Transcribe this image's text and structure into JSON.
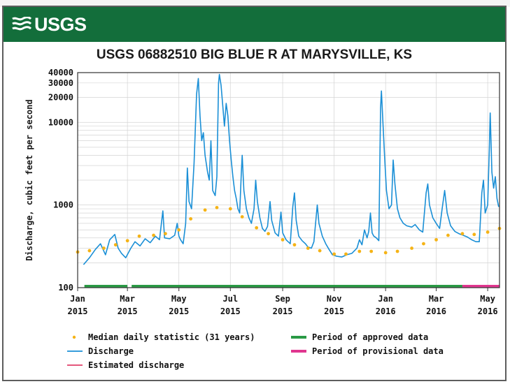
{
  "header": {
    "logo_text": "USGS",
    "brand_color": "#136e3b"
  },
  "chart_data": {
    "type": "line",
    "title": "USGS 06882510 BIG BLUE R AT MARYSVILLE, KS",
    "ylabel": "Discharge, cubic feet per second",
    "xlabel": "",
    "yscale": "log",
    "ylim": [
      100,
      40000
    ],
    "xlim": [
      "2015-01-01",
      "2016-05-15"
    ],
    "grid": true,
    "y_ticks": [
      {
        "value": 100,
        "label": "100"
      },
      {
        "value": 1000,
        "label": "1000"
      },
      {
        "value": 10000,
        "label": "10000"
      },
      {
        "value": 20000,
        "label": "20000"
      },
      {
        "value": 30000,
        "label": "30000"
      },
      {
        "value": 40000,
        "label": "40000"
      }
    ],
    "x_ticks": [
      {
        "date": "2015-01-01",
        "month": "Jan",
        "year": "2015"
      },
      {
        "date": "2015-03-01",
        "month": "Mar",
        "year": "2015"
      },
      {
        "date": "2015-05-01",
        "month": "May",
        "year": "2015"
      },
      {
        "date": "2015-07-01",
        "month": "Jul",
        "year": "2015"
      },
      {
        "date": "2015-09-01",
        "month": "Sep",
        "year": "2015"
      },
      {
        "date": "2015-11-01",
        "month": "Nov",
        "year": "2015"
      },
      {
        "date": "2016-01-01",
        "month": "Jan",
        "year": "2016"
      },
      {
        "date": "2016-03-01",
        "month": "Mar",
        "year": "2016"
      },
      {
        "date": "2016-05-01",
        "month": "May",
        "year": "2016"
      }
    ],
    "series": [
      {
        "name": "Discharge",
        "color": "#1a8fd6",
        "style": "line",
        "points": [
          [
            "2015-01-08",
            190
          ],
          [
            "2015-01-15",
            230
          ],
          [
            "2015-01-22",
            290
          ],
          [
            "2015-01-28",
            340
          ],
          [
            "2015-02-03",
            250
          ],
          [
            "2015-02-08",
            380
          ],
          [
            "2015-02-14",
            440
          ],
          [
            "2015-02-18",
            300
          ],
          [
            "2015-02-22",
            260
          ],
          [
            "2015-02-27",
            230
          ],
          [
            "2015-03-05",
            300
          ],
          [
            "2015-03-10",
            360
          ],
          [
            "2015-03-16",
            320
          ],
          [
            "2015-03-22",
            390
          ],
          [
            "2015-03-28",
            350
          ],
          [
            "2015-04-03",
            420
          ],
          [
            "2015-04-08",
            380
          ],
          [
            "2015-04-12",
            850
          ],
          [
            "2015-04-14",
            400
          ],
          [
            "2015-04-20",
            390
          ],
          [
            "2015-04-26",
            430
          ],
          [
            "2015-04-29",
            600
          ],
          [
            "2015-05-01",
            420
          ],
          [
            "2015-05-03",
            380
          ],
          [
            "2015-05-06",
            340
          ],
          [
            "2015-05-09",
            600
          ],
          [
            "2015-05-11",
            2800
          ],
          [
            "2015-05-13",
            1100
          ],
          [
            "2015-05-16",
            900
          ],
          [
            "2015-05-19",
            3200
          ],
          [
            "2015-05-22",
            22000
          ],
          [
            "2015-05-24",
            34000
          ],
          [
            "2015-05-26",
            12000
          ],
          [
            "2015-05-28",
            6000
          ],
          [
            "2015-05-30",
            7500
          ],
          [
            "2015-06-01",
            4000
          ],
          [
            "2015-06-04",
            2500
          ],
          [
            "2015-06-06",
            2000
          ],
          [
            "2015-06-08",
            6000
          ],
          [
            "2015-06-10",
            1500
          ],
          [
            "2015-06-13",
            1300
          ],
          [
            "2015-06-15",
            2200
          ],
          [
            "2015-06-17",
            30000
          ],
          [
            "2015-06-18",
            38000
          ],
          [
            "2015-06-20",
            28000
          ],
          [
            "2015-06-22",
            16000
          ],
          [
            "2015-06-24",
            9000
          ],
          [
            "2015-06-26",
            17000
          ],
          [
            "2015-06-28",
            12000
          ],
          [
            "2015-06-30",
            6000
          ],
          [
            "2015-07-02",
            3500
          ],
          [
            "2015-07-04",
            2200
          ],
          [
            "2015-07-06",
            1500
          ],
          [
            "2015-07-08",
            1200
          ],
          [
            "2015-07-10",
            900
          ],
          [
            "2015-07-12",
            800
          ],
          [
            "2015-07-14",
            2500
          ],
          [
            "2015-07-15",
            4000
          ],
          [
            "2015-07-17",
            1500
          ],
          [
            "2015-07-20",
            900
          ],
          [
            "2015-07-23",
            700
          ],
          [
            "2015-07-26",
            600
          ],
          [
            "2015-07-29",
            900
          ],
          [
            "2015-07-31",
            2000
          ],
          [
            "2015-08-02",
            1100
          ],
          [
            "2015-08-05",
            700
          ],
          [
            "2015-08-08",
            520
          ],
          [
            "2015-08-11",
            480
          ],
          [
            "2015-08-14",
            550
          ],
          [
            "2015-08-17",
            1100
          ],
          [
            "2015-08-19",
            650
          ],
          [
            "2015-08-23",
            460
          ],
          [
            "2015-08-27",
            420
          ],
          [
            "2015-08-30",
            820
          ],
          [
            "2015-09-01",
            460
          ],
          [
            "2015-09-05",
            380
          ],
          [
            "2015-09-10",
            340
          ],
          [
            "2015-09-13",
            950
          ],
          [
            "2015-09-15",
            1400
          ],
          [
            "2015-09-17",
            650
          ],
          [
            "2015-09-20",
            420
          ],
          [
            "2015-09-24",
            370
          ],
          [
            "2015-09-28",
            340
          ],
          [
            "2015-10-01",
            310
          ],
          [
            "2015-10-05",
            300
          ],
          [
            "2015-10-08",
            360
          ],
          [
            "2015-10-12",
            1000
          ],
          [
            "2015-10-14",
            600
          ],
          [
            "2015-10-18",
            420
          ],
          [
            "2015-10-22",
            340
          ],
          [
            "2015-10-26",
            290
          ],
          [
            "2015-10-30",
            250
          ],
          [
            "2015-11-04",
            240
          ],
          [
            "2015-11-10",
            235
          ],
          [
            "2015-11-16",
            250
          ],
          [
            "2015-11-22",
            260
          ],
          [
            "2015-11-28",
            300
          ],
          [
            "2015-12-01",
            380
          ],
          [
            "2015-12-04",
            330
          ],
          [
            "2015-12-07",
            500
          ],
          [
            "2015-12-10",
            400
          ],
          [
            "2015-12-12",
            480
          ],
          [
            "2015-12-14",
            800
          ],
          [
            "2015-12-16",
            460
          ],
          [
            "2015-12-18",
            420
          ],
          [
            "2015-12-21",
            400
          ],
          [
            "2015-12-24",
            370
          ],
          [
            "2015-12-26",
            15000
          ],
          [
            "2015-12-27",
            24000
          ],
          [
            "2015-12-29",
            9000
          ],
          [
            "2015-12-31",
            3500
          ],
          [
            "2016-01-02",
            1500
          ],
          [
            "2016-01-05",
            900
          ],
          [
            "2016-01-08",
            1000
          ],
          [
            "2016-01-10",
            3500
          ],
          [
            "2016-01-12",
            1800
          ],
          [
            "2016-01-15",
            900
          ],
          [
            "2016-01-18",
            700
          ],
          [
            "2016-01-22",
            600
          ],
          [
            "2016-01-26",
            560
          ],
          [
            "2016-02-01",
            540
          ],
          [
            "2016-02-05",
            580
          ],
          [
            "2016-02-10",
            500
          ],
          [
            "2016-02-14",
            470
          ],
          [
            "2016-02-18",
            1400
          ],
          [
            "2016-02-20",
            1800
          ],
          [
            "2016-02-22",
            1000
          ],
          [
            "2016-02-26",
            700
          ],
          [
            "2016-03-01",
            600
          ],
          [
            "2016-03-05",
            520
          ],
          [
            "2016-03-08",
            900
          ],
          [
            "2016-03-11",
            1500
          ],
          [
            "2016-03-14",
            800
          ],
          [
            "2016-03-18",
            560
          ],
          [
            "2016-03-23",
            480
          ],
          [
            "2016-03-28",
            450
          ],
          [
            "2016-04-02",
            430
          ],
          [
            "2016-04-07",
            410
          ],
          [
            "2016-04-12",
            380
          ],
          [
            "2016-04-17",
            360
          ],
          [
            "2016-04-21",
            360
          ],
          [
            "2016-04-24",
            1400
          ],
          [
            "2016-04-26",
            2000
          ],
          [
            "2016-04-28",
            800
          ],
          [
            "2016-05-01",
            1000
          ],
          [
            "2016-05-03",
            5000
          ],
          [
            "2016-05-04",
            13000
          ],
          [
            "2016-05-06",
            2500
          ],
          [
            "2016-05-08",
            1600
          ],
          [
            "2016-05-10",
            2200
          ],
          [
            "2016-05-12",
            1200
          ],
          [
            "2016-05-14",
            950
          ]
        ]
      },
      {
        "name": "Median daily statistic (31 years)",
        "color": "#f5b316",
        "style": "dots",
        "points": [
          [
            "2015-01-01",
            270
          ],
          [
            "2015-01-15",
            280
          ],
          [
            "2015-02-01",
            300
          ],
          [
            "2015-02-15",
            330
          ],
          [
            "2015-03-01",
            370
          ],
          [
            "2015-03-15",
            420
          ],
          [
            "2015-04-01",
            430
          ],
          [
            "2015-04-15",
            450
          ],
          [
            "2015-05-01",
            500
          ],
          [
            "2015-05-15",
            680
          ],
          [
            "2015-06-01",
            870
          ],
          [
            "2015-06-15",
            930
          ],
          [
            "2015-07-01",
            900
          ],
          [
            "2015-07-15",
            720
          ],
          [
            "2015-08-01",
            530
          ],
          [
            "2015-08-15",
            450
          ],
          [
            "2015-09-01",
            380
          ],
          [
            "2015-09-15",
            330
          ],
          [
            "2015-10-01",
            300
          ],
          [
            "2015-10-15",
            280
          ],
          [
            "2015-11-01",
            255
          ],
          [
            "2015-11-15",
            255
          ],
          [
            "2015-12-01",
            275
          ],
          [
            "2015-12-15",
            275
          ],
          [
            "2016-01-01",
            265
          ],
          [
            "2016-01-15",
            275
          ],
          [
            "2016-02-01",
            300
          ],
          [
            "2016-02-15",
            340
          ],
          [
            "2016-03-01",
            380
          ],
          [
            "2016-03-15",
            430
          ],
          [
            "2016-04-01",
            450
          ],
          [
            "2016-04-15",
            440
          ],
          [
            "2016-05-01",
            470
          ],
          [
            "2016-05-15",
            520
          ]
        ]
      }
    ],
    "approval_periods": [
      {
        "name": "Period of approved data",
        "start": "2015-01-09",
        "end": "2015-03-01",
        "color": "#2a9a45"
      },
      {
        "name": "Period of approved data",
        "start": "2015-03-06",
        "end": "2016-04-01",
        "color": "#2a9a45"
      },
      {
        "name": "Period of provisional data",
        "start": "2016-04-01",
        "end": "2016-05-15",
        "color": "#e0368f"
      }
    ],
    "legend": {
      "placement": "bottom",
      "entries": [
        {
          "label": "Median daily statistic (31 years)",
          "symbol": "dot",
          "color": "#f5b316"
        },
        {
          "label": "Period of approved data",
          "symbol": "thick-line",
          "color": "#2a9a45"
        },
        {
          "label": "Discharge",
          "symbol": "line",
          "color": "#1a8fd6"
        },
        {
          "label": "Period of provisional data",
          "symbol": "thick-line",
          "color": "#e0368f"
        },
        {
          "label": "Estimated discharge",
          "symbol": "line",
          "color": "#e0406a"
        }
      ]
    }
  }
}
